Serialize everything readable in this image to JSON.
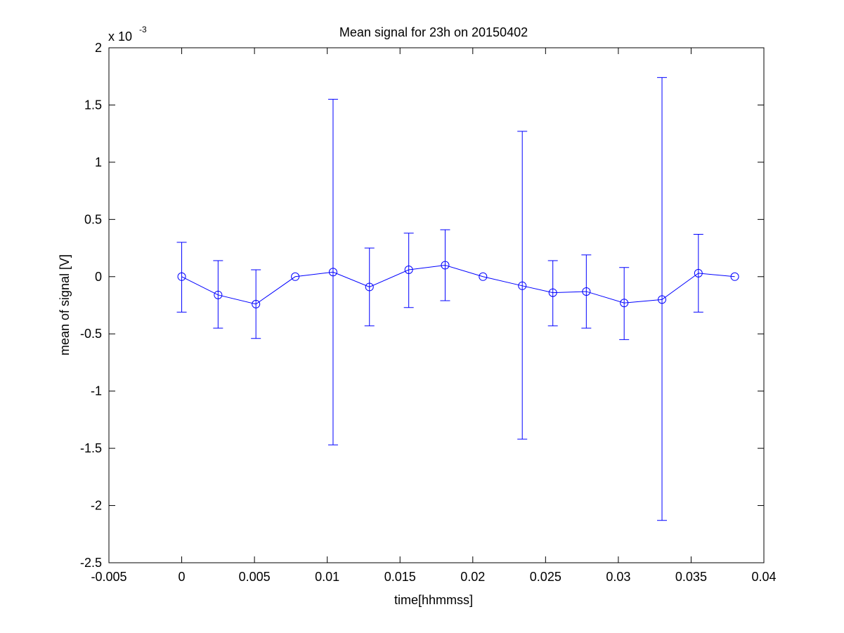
{
  "chart_data": {
    "type": "line",
    "title": "Mean signal for 23h on 20150402",
    "xlabel": "time[hhmmss]",
    "ylabel": "mean of signal [V]",
    "y_exponent_label": "x 10",
    "y_exponent": "-3",
    "xlim": [
      -0.005,
      0.04
    ],
    "ylim": [
      -2.5,
      2
    ],
    "y_scale_factor": 0.001,
    "grid": false,
    "x_ticks": [
      -0.005,
      0,
      0.005,
      0.01,
      0.015,
      0.02,
      0.025,
      0.03,
      0.035,
      0.04
    ],
    "x_tick_labels": [
      "-0.005",
      "0",
      "0.005",
      "0.01",
      "0.015",
      "0.02",
      "0.025",
      "0.03",
      "0.035",
      "0.04"
    ],
    "y_ticks": [
      -2.5,
      -2,
      -1.5,
      -1,
      -0.5,
      0,
      0.5,
      1,
      1.5,
      2
    ],
    "y_tick_labels": [
      "-2.5",
      "-2",
      "-1.5",
      "-1",
      "-0.5",
      "0",
      "0.5",
      "1",
      "1.5",
      "2"
    ],
    "color": "#0000ff",
    "marker": "circle",
    "series": [
      {
        "x": [
          0,
          0.0025,
          0.0051,
          0.0078,
          0.0104,
          0.0129,
          0.0156,
          0.0181,
          0.0207,
          0.0234,
          0.0255,
          0.0278,
          0.0304,
          0.033,
          0.0355,
          0.038
        ],
        "y": [
          0,
          -0.16,
          -0.24,
          0,
          0.04,
          -0.09,
          0.06,
          0.1,
          0,
          -0.08,
          -0.14,
          -0.13,
          -0.23,
          -0.2,
          0.03,
          0
        ],
        "err_upper": [
          0.3,
          0.14,
          0.06,
          0,
          1.55,
          0.25,
          0.38,
          0.41,
          0,
          1.27,
          0.14,
          0.19,
          0.08,
          1.74,
          0.37,
          0
        ],
        "err_lower": [
          -0.31,
          -0.45,
          -0.54,
          0,
          -1.47,
          -0.43,
          -0.27,
          -0.21,
          0,
          -1.42,
          -0.43,
          -0.45,
          -0.55,
          -2.13,
          -0.31,
          0
        ]
      }
    ]
  }
}
